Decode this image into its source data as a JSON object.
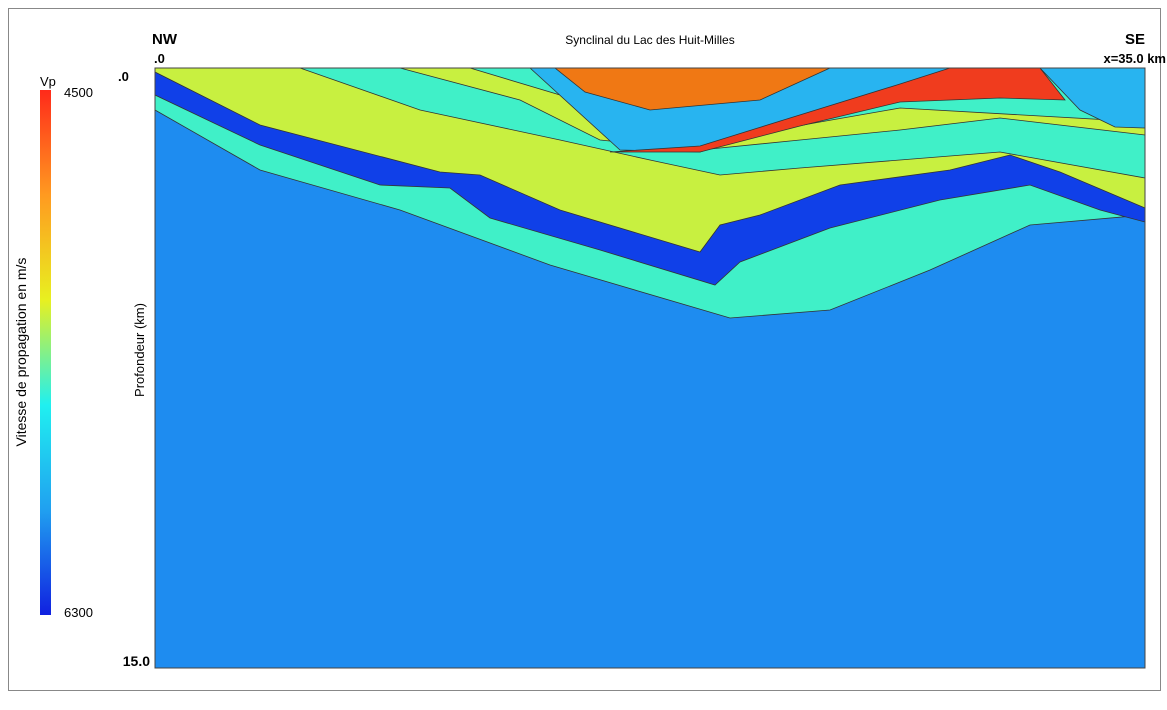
{
  "title": "Synclinal du Lac des Huit-Milles",
  "left_label": "NW",
  "right_label": "SE",
  "x_start": ".0",
  "x_end": "x=35.0 km",
  "depth_top": ".0",
  "depth_bottom": "15.0",
  "depth_axis_label": "Profondeur (km)",
  "colorbar": {
    "label": "Vitesse de propagation en m/s",
    "unit": "Vp",
    "max": "4500",
    "min": "6300"
  }
}
